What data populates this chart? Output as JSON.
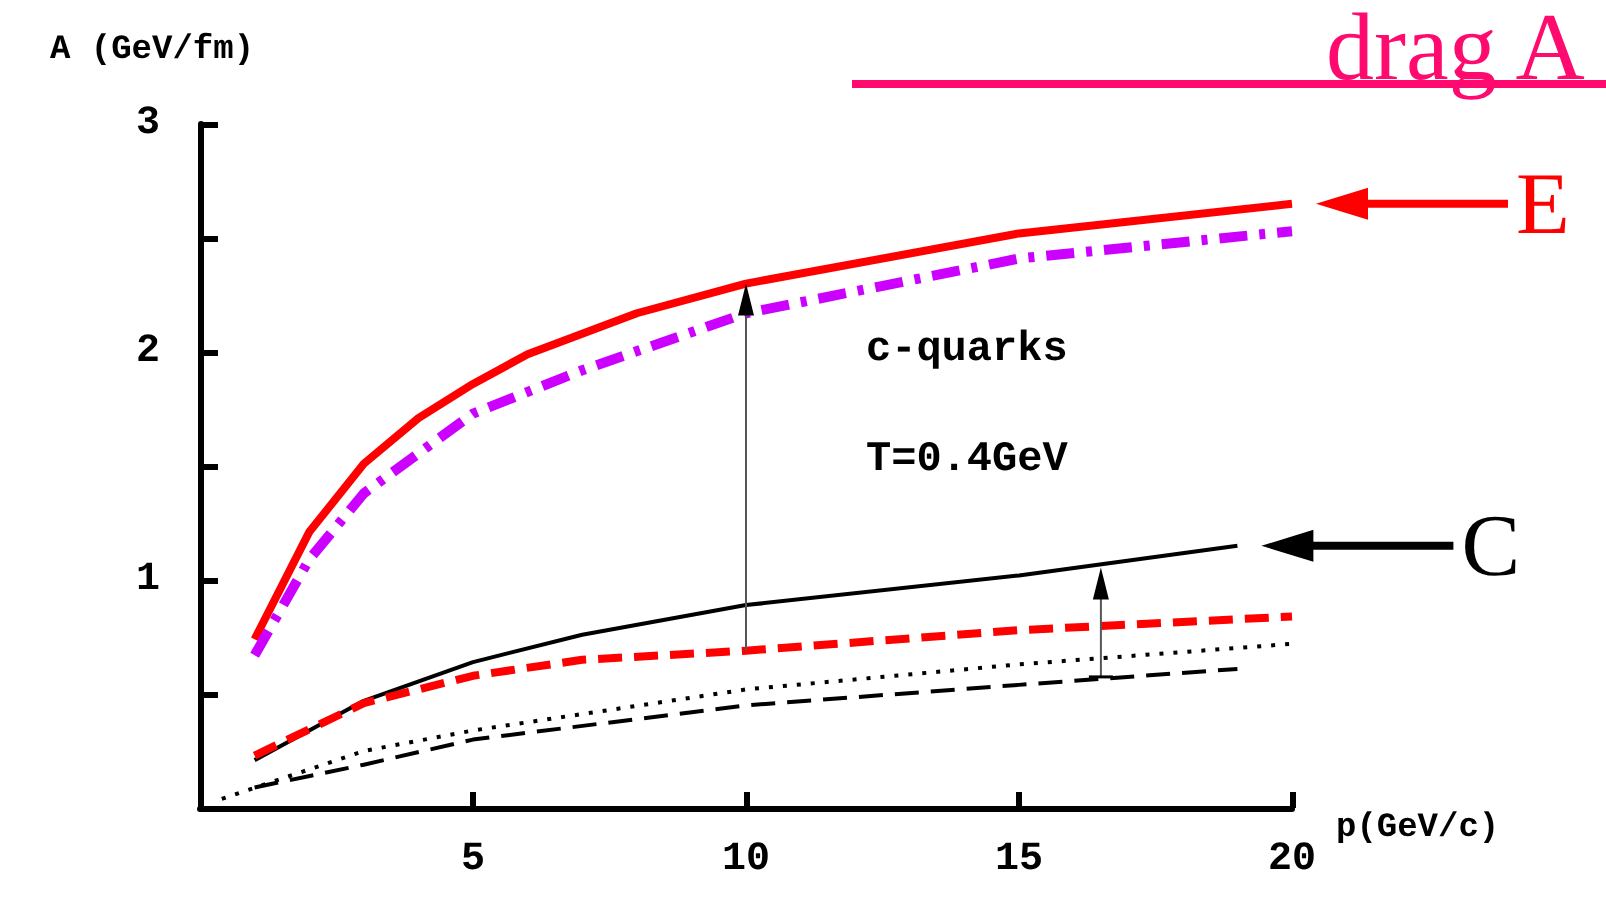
{
  "chart_data": {
    "type": "line",
    "title": "drag A",
    "ylabel": "A (GeV/fm)",
    "xlabel": "p(GeV/c)",
    "xlim": [
      0,
      20
    ],
    "xticks": [
      5,
      10,
      15,
      20
    ],
    "ylim": [
      0,
      3
    ],
    "yticks": [
      {
        "value": 0.5,
        "label": null
      },
      1,
      {
        "value": 1.5,
        "label": null
      },
      2,
      {
        "value": 2.5,
        "label": null
      },
      3
    ],
    "grid": false,
    "marker": "none",
    "series": [
      {
        "color": "#ff0000",
        "line_style": "solid",
        "x": [
          1,
          2,
          3,
          4,
          5,
          6,
          8,
          10,
          15,
          20
        ],
        "values": [
          0.74,
          1.21,
          1.51,
          1.71,
          1.86,
          1.99,
          2.17,
          2.3,
          2.52,
          2.65
        ]
      },
      {
        "color": "#cc00ff",
        "line_style": "dashdot",
        "x": [
          1,
          2,
          3,
          5,
          7,
          10,
          15,
          20
        ],
        "values": [
          0.67,
          1.09,
          1.38,
          1.73,
          1.92,
          2.17,
          2.41,
          2.53
        ]
      },
      {
        "color": "#000000",
        "line_style": "solid",
        "x": [
          1,
          3,
          5,
          7,
          10,
          15,
          19
        ],
        "values": [
          0.21,
          0.47,
          0.64,
          0.76,
          0.89,
          1.02,
          1.15
        ]
      },
      {
        "color": "#ff0000",
        "line_style": "dashed",
        "x": [
          1,
          3,
          5,
          7,
          10,
          15,
          20
        ],
        "values": [
          0.23,
          0.46,
          0.58,
          0.65,
          0.69,
          0.78,
          0.84
        ]
      },
      {
        "color": "#000000",
        "line_style": "dotted",
        "x": [
          0.4,
          3,
          5,
          10,
          15,
          20
        ],
        "values": [
          0.04,
          0.25,
          0.34,
          0.52,
          0.63,
          0.72
        ]
      },
      {
        "color": "#000000",
        "line_style": "dashed",
        "x": [
          1,
          3,
          5,
          10,
          15,
          19
        ],
        "values": [
          0.09,
          0.19,
          0.3,
          0.45,
          0.54,
          0.61
        ]
      }
    ],
    "annotations": [
      "c-quarks",
      "T=0.4GeV",
      {
        "text": "E",
        "x": 20,
        "y": 2.65
      },
      {
        "text": "C",
        "x": 19,
        "y": 1.15
      }
    ]
  }
}
